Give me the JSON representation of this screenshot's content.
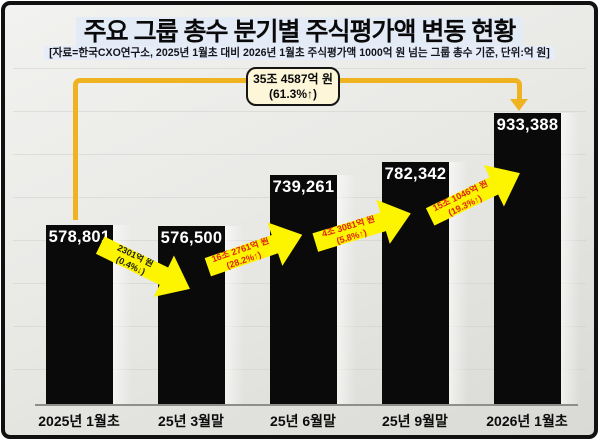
{
  "header": {
    "title": "주요 그룹 총수 분기별 주식평가액 변동 현황",
    "subtitle": "[자료=한국CXO연구소, 2025년 1월초 대비 2026년 1월초 주식평가액 1000억 원 넘는 그룹 총수 기준, 단위:억 원]"
  },
  "callout": {
    "line1": "35조 4587억 원",
    "line2": "(61.3%↑)"
  },
  "chart_data": {
    "type": "bar",
    "title": "주요 그룹 총수 분기별 주식평가액 변동 현황",
    "unit": "억 원",
    "categories": [
      "2025년 1월초",
      "25년 3월말",
      "25년 6월말",
      "25년 9월말",
      "2026년 1월초"
    ],
    "values": [
      578801,
      576500,
      739261,
      782342,
      933388
    ],
    "bar_labels": [
      "578,801",
      "576,500",
      "739,261",
      "782,342",
      "933,388"
    ],
    "ylim": [
      0,
      960000
    ],
    "grid": true,
    "legend": false,
    "bar_color": "#0a0a0a",
    "changes": [
      {
        "between": [
          "2025년 1월초",
          "25년 3월말"
        ],
        "amount": -2301,
        "label1": "2301억 원",
        "label2": "(0.4%↓)",
        "direction": "down"
      },
      {
        "between": [
          "25년 3월말",
          "25년 6월말"
        ],
        "amount": 162761,
        "label1": "16조 2761억 원",
        "label2": "(28.2%↑)",
        "direction": "up"
      },
      {
        "between": [
          "25년 6월말",
          "25년 9월말"
        ],
        "amount": 43081,
        "label1": "4조 3081억 원",
        "label2": "(5.8%↑)",
        "direction": "up"
      },
      {
        "between": [
          "25년 9월말",
          "2026년 1월초"
        ],
        "amount": 151046,
        "label1": "15조 1046억 원",
        "label2": "(19.3%↑)",
        "direction": "up"
      }
    ],
    "total_change": {
      "amount": 354587,
      "label1": "35조 4587억 원",
      "label2": "(61.3%↑)"
    }
  },
  "colors": {
    "bar": "#0a0a0a",
    "arrow_yellow": "#fdf400",
    "arrow_text_up": "#e02314",
    "arrow_text_down": "#1c1c1c",
    "connector_gold": "#efb322",
    "callout_bg": "#fdf6d8",
    "title_highlight": "#e3ebf7"
  }
}
